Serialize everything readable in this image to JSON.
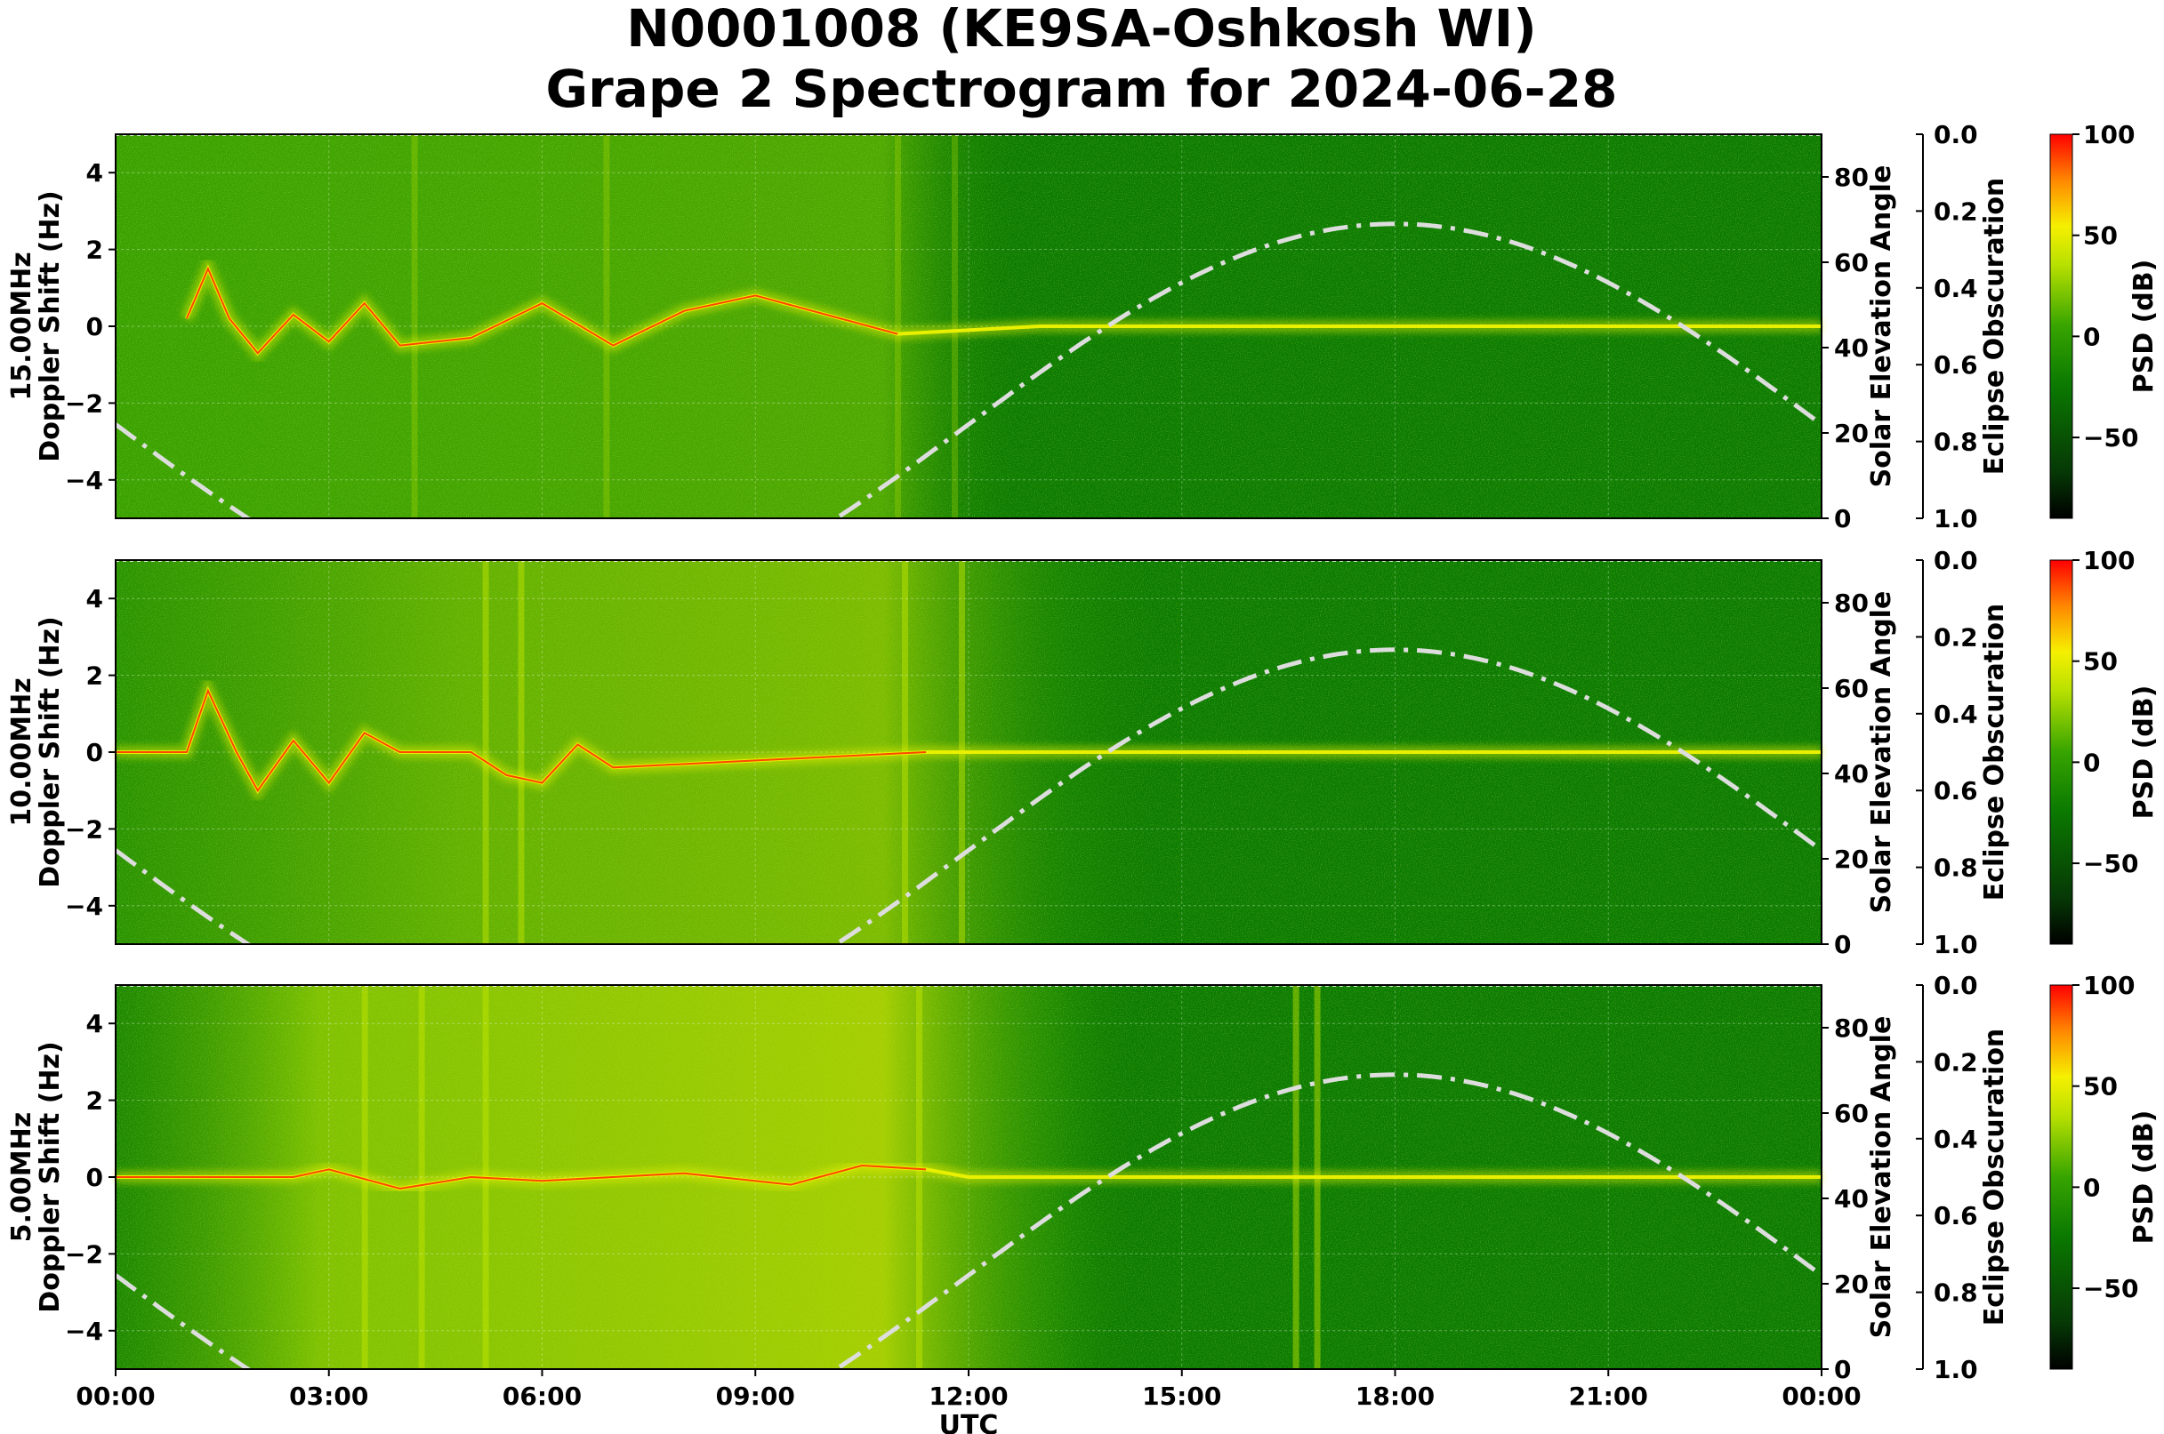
{
  "title": {
    "line1": "N0001008 (KE9SA-Oshkosh WI)",
    "line2": "Grape 2 Spectrogram for 2024-06-28"
  },
  "colors": {
    "background_green": "#0a7a00",
    "signal_yellow": "#e8f000",
    "signal_red": "#ff2a00",
    "elevation_curve": "#dddddd",
    "colormap": [
      "#000000",
      "#063806",
      "#0b7a00",
      "#37a400",
      "#b8e000",
      "#f5f000",
      "#ff8800",
      "#ff0000"
    ]
  },
  "chart_data": [
    {
      "type": "heatmap",
      "panel": "15.00MHz",
      "ylabel": "15.00MHz\nDoppler Shift (Hz)",
      "ylim": [
        -5,
        5
      ],
      "yticks": [
        "4",
        "2",
        "0",
        "−2",
        "−4"
      ],
      "right_axes": [
        {
          "label": "Solar Elevation Angle",
          "ylim": [
            0,
            90
          ],
          "ticks": [
            "80",
            "60",
            "40",
            "20",
            "0"
          ]
        },
        {
          "label": "Eclipse Obscuration",
          "ylim": [
            0.0,
            1.0
          ],
          "inverted": true,
          "ticks": [
            "0.0",
            "0.2",
            "0.4",
            "0.6",
            "0.8",
            "1.0"
          ]
        }
      ],
      "colorbar": {
        "label": "PSD (dB)",
        "range": [
          -90,
          100
        ],
        "ticks": [
          "100",
          "50",
          "0",
          "−50"
        ]
      },
      "grid": true,
      "carrier_trace": [
        [
          1.0,
          0.2
        ],
        [
          1.3,
          1.5
        ],
        [
          1.6,
          0.2
        ],
        [
          2.0,
          -0.7
        ],
        [
          2.5,
          0.3
        ],
        [
          3.0,
          -0.4
        ],
        [
          3.5,
          0.6
        ],
        [
          4.0,
          -0.5
        ],
        [
          5.0,
          -0.3
        ],
        [
          6.0,
          0.6
        ],
        [
          7.0,
          -0.5
        ],
        [
          8.0,
          0.4
        ],
        [
          9.0,
          0.8
        ],
        [
          10.0,
          0.3
        ],
        [
          11.0,
          -0.2
        ],
        [
          13.0,
          0.0
        ],
        [
          24.0,
          0.0
        ]
      ],
      "solar_elevation": [
        [
          0,
          17
        ],
        [
          1,
          10
        ],
        [
          2,
          3
        ],
        [
          10.3,
          0
        ],
        [
          12,
          12
        ],
        [
          15,
          46
        ],
        [
          17,
          66
        ],
        [
          18,
          69
        ],
        [
          19,
          66
        ],
        [
          21,
          46
        ],
        [
          24,
          16
        ]
      ]
    },
    {
      "type": "heatmap",
      "panel": "10.00MHz",
      "ylabel": "10.00MHz\nDoppler Shift (Hz)",
      "ylim": [
        -5,
        5
      ],
      "yticks": [
        "4",
        "2",
        "0",
        "−2",
        "−4"
      ],
      "right_axes": [
        {
          "label": "Solar Elevation Angle",
          "ylim": [
            0,
            90
          ],
          "ticks": [
            "80",
            "60",
            "40",
            "20",
            "0"
          ]
        },
        {
          "label": "Eclipse Obscuration",
          "ylim": [
            0.0,
            1.0
          ],
          "inverted": true,
          "ticks": [
            "0.0",
            "0.2",
            "0.4",
            "0.6",
            "0.8",
            "1.0"
          ]
        }
      ],
      "colorbar": {
        "label": "PSD (dB)",
        "range": [
          -90,
          100
        ],
        "ticks": [
          "100",
          "50",
          "0",
          "−50"
        ]
      },
      "grid": true,
      "carrier_trace": [
        [
          0.0,
          0.0
        ],
        [
          1.0,
          0.0
        ],
        [
          1.3,
          1.6
        ],
        [
          1.7,
          0.0
        ],
        [
          2.0,
          -1.0
        ],
        [
          2.5,
          0.3
        ],
        [
          3.0,
          -0.8
        ],
        [
          3.5,
          0.5
        ],
        [
          4.0,
          0.0
        ],
        [
          5.0,
          0.0
        ],
        [
          5.5,
          -0.6
        ],
        [
          6.0,
          -0.8
        ],
        [
          6.5,
          0.2
        ],
        [
          7.0,
          -0.4
        ],
        [
          11.4,
          0.0
        ],
        [
          24.0,
          0.0
        ]
      ],
      "solar_elevation": [
        [
          0,
          17
        ],
        [
          1,
          10
        ],
        [
          2,
          3
        ],
        [
          10.3,
          0
        ],
        [
          12,
          12
        ],
        [
          15,
          46
        ],
        [
          17,
          66
        ],
        [
          18,
          69
        ],
        [
          19,
          66
        ],
        [
          21,
          46
        ],
        [
          24,
          16
        ]
      ]
    },
    {
      "type": "heatmap",
      "panel": "5.00MHz",
      "ylabel": "5.00MHz\nDoppler Shift (Hz)",
      "ylim": [
        -5,
        5
      ],
      "yticks": [
        "4",
        "2",
        "0",
        "−2",
        "−4"
      ],
      "right_axes": [
        {
          "label": "Solar Elevation Angle",
          "ylim": [
            0,
            90
          ],
          "ticks": [
            "80",
            "60",
            "40",
            "20",
            "0"
          ]
        },
        {
          "label": "Eclipse Obscuration",
          "ylim": [
            0.0,
            1.0
          ],
          "inverted": true,
          "ticks": [
            "0.0",
            "0.2",
            "0.4",
            "0.6",
            "0.8",
            "1.0"
          ]
        }
      ],
      "colorbar": {
        "label": "PSD (dB)",
        "range": [
          -90,
          100
        ],
        "ticks": [
          "100",
          "50",
          "0",
          "−50"
        ]
      },
      "grid": true,
      "xlabel": "UTC",
      "xticks": [
        "00:00",
        "03:00",
        "06:00",
        "09:00",
        "12:00",
        "15:00",
        "18:00",
        "21:00",
        "00:00"
      ],
      "xlim_hours": [
        0,
        24
      ],
      "carrier_trace": [
        [
          0.0,
          0.0
        ],
        [
          2.5,
          0.0
        ],
        [
          3.0,
          0.2
        ],
        [
          4.0,
          -0.3
        ],
        [
          5.0,
          0.0
        ],
        [
          6.0,
          -0.1
        ],
        [
          7.0,
          0.0
        ],
        [
          8.0,
          0.1
        ],
        [
          9.5,
          -0.2
        ],
        [
          10.5,
          0.3
        ],
        [
          11.4,
          0.2
        ],
        [
          12.0,
          0.0
        ],
        [
          24.0,
          0.0
        ]
      ],
      "solar_elevation": [
        [
          0,
          17
        ],
        [
          1,
          10
        ],
        [
          2,
          3
        ],
        [
          10.3,
          0
        ],
        [
          12,
          12
        ],
        [
          15,
          46
        ],
        [
          17,
          66
        ],
        [
          18,
          69
        ],
        [
          19,
          66
        ],
        [
          21,
          46
        ],
        [
          24,
          16
        ]
      ]
    }
  ]
}
